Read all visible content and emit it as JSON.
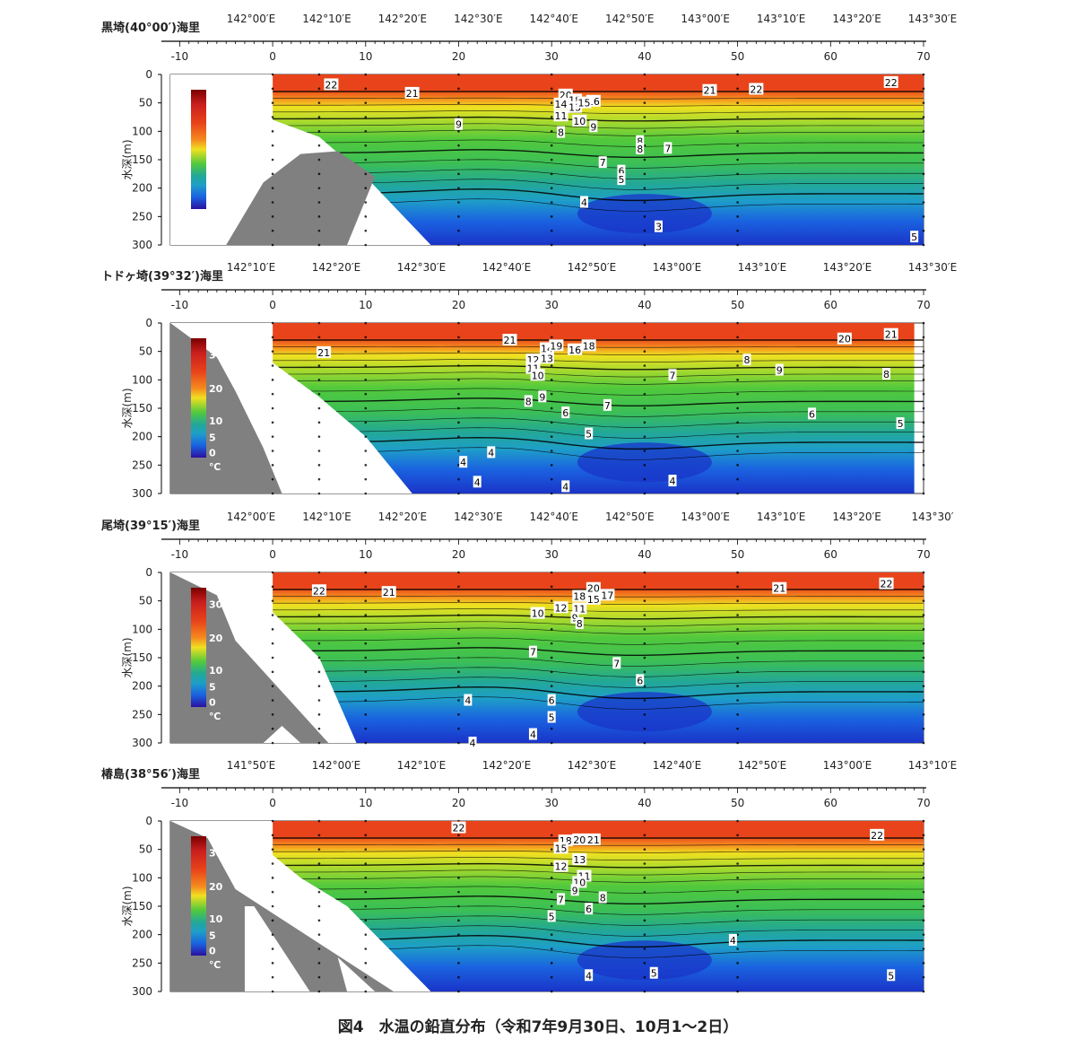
{
  "caption": "図4　水温の鉛直分布（令和7年9月30日、10月1～2日）",
  "colorbar": {
    "ticks": [
      "30",
      "20",
      "10",
      "5",
      "0"
    ],
    "unit": "℃"
  },
  "colors": {
    "hot": "#e8431a",
    "orange": "#f58a1f",
    "yellow": "#f0e020",
    "yellowgreen": "#b6dc2c",
    "green": "#52c93c",
    "lightgreen": "#3cbf55",
    "teal": "#23a896",
    "cyan": "#1e9ec8",
    "blue": "#1a62e0",
    "deepblue": "#1a34c8",
    "land": "#808080"
  },
  "chart_data": [
    {
      "type": "heatmap",
      "title": "黒埼(40°00′)海里",
      "ylabel": "水深(m)",
      "x_ticks": [
        -10,
        0,
        10,
        20,
        30,
        40,
        50,
        60,
        70
      ],
      "y_ticks": [
        0,
        50,
        100,
        150,
        200,
        250,
        300
      ],
      "xlim": [
        -11,
        70
      ],
      "ylim": [
        300,
        0
      ],
      "top_labels": [
        "142°00′E",
        "142°10′E",
        "142°20′E",
        "142°30′E",
        "142°40′E",
        "142°50′E",
        "143°00′E",
        "143°10′E",
        "143°20′E",
        "143°30′E"
      ],
      "labels": [
        {
          "x": 6.3,
          "y": 18,
          "t": "22"
        },
        {
          "x": 15,
          "y": 33,
          "t": "21"
        },
        {
          "x": 31.5,
          "y": 36,
          "t": "20"
        },
        {
          "x": 32.5,
          "y": 45,
          "t": "18"
        },
        {
          "x": 34.5,
          "y": 47,
          "t": "16"
        },
        {
          "x": 31,
          "y": 52,
          "t": "14"
        },
        {
          "x": 32.5,
          "y": 58,
          "t": "13"
        },
        {
          "x": 33.5,
          "y": 50,
          "t": "15"
        },
        {
          "x": 31,
          "y": 73,
          "t": "11"
        },
        {
          "x": 33,
          "y": 82,
          "t": "10"
        },
        {
          "x": 34.5,
          "y": 92,
          "t": "9"
        },
        {
          "x": 20,
          "y": 88,
          "t": "9"
        },
        {
          "x": 31,
          "y": 102,
          "t": "8"
        },
        {
          "x": 39.5,
          "y": 118,
          "t": "8"
        },
        {
          "x": 39.5,
          "y": 131,
          "t": "8"
        },
        {
          "x": 42.5,
          "y": 130,
          "t": "7"
        },
        {
          "x": 35.5,
          "y": 155,
          "t": "7"
        },
        {
          "x": 37.5,
          "y": 170,
          "t": "6"
        },
        {
          "x": 37.5,
          "y": 185,
          "t": "5"
        },
        {
          "x": 33.5,
          "y": 225,
          "t": "4"
        },
        {
          "x": 41.5,
          "y": 268,
          "t": "3"
        },
        {
          "x": 47,
          "y": 28,
          "t": "21"
        },
        {
          "x": 52,
          "y": 26,
          "t": "22"
        },
        {
          "x": 66.5,
          "y": 14,
          "t": "22"
        },
        {
          "x": 69,
          "y": 286,
          "t": "5"
        }
      ]
    },
    {
      "type": "heatmap",
      "title": "トドヶ埼(39°32′)海里",
      "ylabel": "水深(m)",
      "x_ticks": [
        -10,
        0,
        10,
        20,
        30,
        40,
        50,
        60,
        70
      ],
      "y_ticks": [
        0,
        50,
        100,
        150,
        200,
        250,
        300
      ],
      "xlim": [
        -11,
        70
      ],
      "ylim": [
        300,
        0
      ],
      "top_labels": [
        "142°10′E",
        "142°20′E",
        "142°30′E",
        "142°40′E",
        "142°50′E",
        "143°00′E",
        "143°10′E",
        "143°20′E",
        "143°30′E"
      ],
      "labels": [
        {
          "x": 5.5,
          "y": 52,
          "t": "21"
        },
        {
          "x": 25.5,
          "y": 30,
          "t": "21"
        },
        {
          "x": 29.5,
          "y": 45,
          "t": "14"
        },
        {
          "x": 30.5,
          "y": 40,
          "t": "19"
        },
        {
          "x": 32.5,
          "y": 47,
          "t": "16"
        },
        {
          "x": 34,
          "y": 40,
          "t": "18"
        },
        {
          "x": 28,
          "y": 65,
          "t": "12"
        },
        {
          "x": 29.5,
          "y": 62,
          "t": "13"
        },
        {
          "x": 28,
          "y": 80,
          "t": "11"
        },
        {
          "x": 28.5,
          "y": 92,
          "t": "10"
        },
        {
          "x": 29,
          "y": 130,
          "t": "9"
        },
        {
          "x": 27.5,
          "y": 138,
          "t": "8"
        },
        {
          "x": 31.5,
          "y": 158,
          "t": "6"
        },
        {
          "x": 36,
          "y": 145,
          "t": "7"
        },
        {
          "x": 43,
          "y": 92,
          "t": "7"
        },
        {
          "x": 51,
          "y": 65,
          "t": "8"
        },
        {
          "x": 54.5,
          "y": 83,
          "t": "9"
        },
        {
          "x": 66,
          "y": 90,
          "t": "8"
        },
        {
          "x": 58,
          "y": 160,
          "t": "6"
        },
        {
          "x": 67.5,
          "y": 177,
          "t": "5"
        },
        {
          "x": 34,
          "y": 195,
          "t": "5"
        },
        {
          "x": 23.5,
          "y": 228,
          "t": "4"
        },
        {
          "x": 20.5,
          "y": 245,
          "t": "4"
        },
        {
          "x": 22,
          "y": 280,
          "t": "4"
        },
        {
          "x": 31.5,
          "y": 288,
          "t": "4"
        },
        {
          "x": 43,
          "y": 278,
          "t": "4"
        },
        {
          "x": 61.5,
          "y": 28,
          "t": "20"
        },
        {
          "x": 66.5,
          "y": 20,
          "t": "21"
        }
      ]
    },
    {
      "type": "heatmap",
      "title": "尾埼(39°15′)海里",
      "ylabel": "水深(m)",
      "x_ticks": [
        -10,
        0,
        10,
        20,
        30,
        40,
        50,
        60,
        70
      ],
      "y_ticks": [
        0,
        50,
        100,
        150,
        200,
        250,
        300
      ],
      "xlim": [
        -11,
        70
      ],
      "ylim": [
        300,
        0
      ],
      "top_labels": [
        "142°00′E",
        "142°10′E",
        "142°20′E",
        "142°30′E",
        "142°40′E",
        "142°50′E",
        "143°00′E",
        "143°10′E",
        "143°20′E",
        "143°30′"
      ],
      "labels": [
        {
          "x": 5,
          "y": 32,
          "t": "22"
        },
        {
          "x": 12.5,
          "y": 35,
          "t": "21"
        },
        {
          "x": 34.5,
          "y": 28,
          "t": "20"
        },
        {
          "x": 33,
          "y": 42,
          "t": "18"
        },
        {
          "x": 34.5,
          "y": 47,
          "t": "15"
        },
        {
          "x": 36,
          "y": 40,
          "t": "17"
        },
        {
          "x": 31,
          "y": 62,
          "t": "12"
        },
        {
          "x": 33,
          "y": 64,
          "t": "11"
        },
        {
          "x": 28.5,
          "y": 72,
          "t": "10"
        },
        {
          "x": 32.5,
          "y": 80,
          "t": "9"
        },
        {
          "x": 33,
          "y": 90,
          "t": "8"
        },
        {
          "x": 28,
          "y": 140,
          "t": "7"
        },
        {
          "x": 37,
          "y": 160,
          "t": "7"
        },
        {
          "x": 39.5,
          "y": 190,
          "t": "6"
        },
        {
          "x": 30,
          "y": 225,
          "t": "6"
        },
        {
          "x": 21,
          "y": 225,
          "t": "4"
        },
        {
          "x": 30,
          "y": 255,
          "t": "5"
        },
        {
          "x": 28,
          "y": 285,
          "t": "4"
        },
        {
          "x": 21.5,
          "y": 300,
          "t": "4"
        },
        {
          "x": 54.5,
          "y": 28,
          "t": "21"
        },
        {
          "x": 66,
          "y": 20,
          "t": "22"
        }
      ]
    },
    {
      "type": "heatmap",
      "title": "椿島(38°56′)海里",
      "ylabel": "水深(m)",
      "x_ticks": [
        -10,
        0,
        10,
        20,
        30,
        40,
        50,
        60,
        70
      ],
      "y_ticks": [
        0,
        50,
        100,
        150,
        200,
        250,
        300
      ],
      "xlim": [
        -11,
        70
      ],
      "ylim": [
        300,
        0
      ],
      "top_labels": [
        "141°50′E",
        "142°00′E",
        "142°10′E",
        "142°20′E",
        "142°30′E",
        "142°40′E",
        "142°50′E",
        "143°00′E",
        "143°10′E"
      ],
      "labels": [
        {
          "x": 20,
          "y": 12,
          "t": "22"
        },
        {
          "x": 31.5,
          "y": 35,
          "t": "18"
        },
        {
          "x": 33,
          "y": 33,
          "t": "20"
        },
        {
          "x": 34.5,
          "y": 33,
          "t": "21"
        },
        {
          "x": 31,
          "y": 48,
          "t": "15"
        },
        {
          "x": 31,
          "y": 80,
          "t": "12"
        },
        {
          "x": 33,
          "y": 68,
          "t": "13"
        },
        {
          "x": 33.5,
          "y": 97,
          "t": "11"
        },
        {
          "x": 33,
          "y": 108,
          "t": "10"
        },
        {
          "x": 32.5,
          "y": 122,
          "t": "9"
        },
        {
          "x": 35.5,
          "y": 135,
          "t": "8"
        },
        {
          "x": 31,
          "y": 138,
          "t": "7"
        },
        {
          "x": 34,
          "y": 155,
          "t": "6"
        },
        {
          "x": 30,
          "y": 168,
          "t": "5"
        },
        {
          "x": 49.5,
          "y": 210,
          "t": "4"
        },
        {
          "x": 41,
          "y": 268,
          "t": "5"
        },
        {
          "x": 34,
          "y": 272,
          "t": "4"
        },
        {
          "x": 65,
          "y": 25,
          "t": "22"
        },
        {
          "x": 66.5,
          "y": 272,
          "t": "5"
        }
      ]
    }
  ]
}
